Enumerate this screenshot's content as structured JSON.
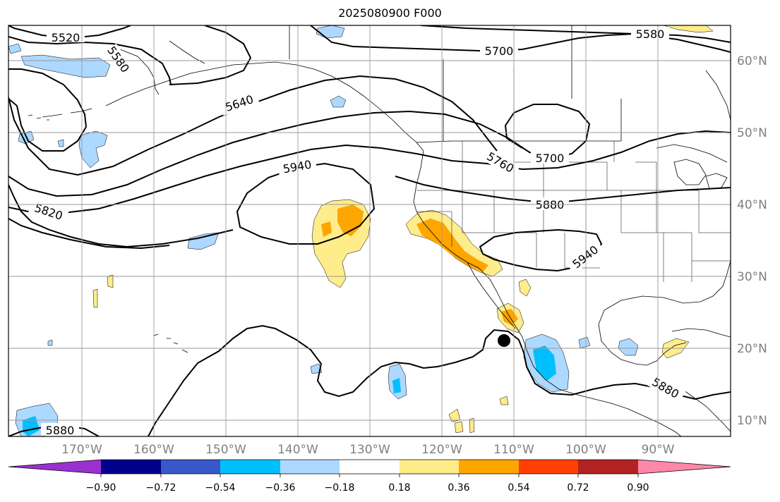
{
  "title": "2025080900 F000",
  "map": {
    "lon_labels": [
      "170°W",
      "160°W",
      "150°W",
      "140°W",
      "130°W",
      "120°W",
      "110°W",
      "100°W",
      "90°W"
    ],
    "lat_labels": [
      "60°N",
      "50°N",
      "40°N",
      "30°N",
      "20°N",
      "10°N"
    ],
    "contour_labels": [
      "5520",
      "5580",
      "5580",
      "5640",
      "5700",
      "5700",
      "5760",
      "5820",
      "5880",
      "5880",
      "5880",
      "5940",
      "5940"
    ],
    "marker": {
      "name": "storm-center-marker",
      "lon": -111.2,
      "lat": 21.2,
      "color": "#000000"
    }
  },
  "colorbar": {
    "tick_labels": [
      "−0.90",
      "−0.72",
      "−0.54",
      "−0.36",
      "−0.18",
      "0.18",
      "0.36",
      "0.54",
      "0.72",
      "0.90"
    ],
    "colors": [
      "#9b30d0",
      "#00008b",
      "#3858c8",
      "#00bfff",
      "#add8ff",
      "#ffffff",
      "#ffec8b",
      "#ffa500",
      "#ff4000",
      "#b22222",
      "#ff88aa"
    ],
    "extend": "both"
  },
  "colors": {
    "contour": "#000000",
    "grid": "#999999",
    "coast": "#000000"
  }
}
